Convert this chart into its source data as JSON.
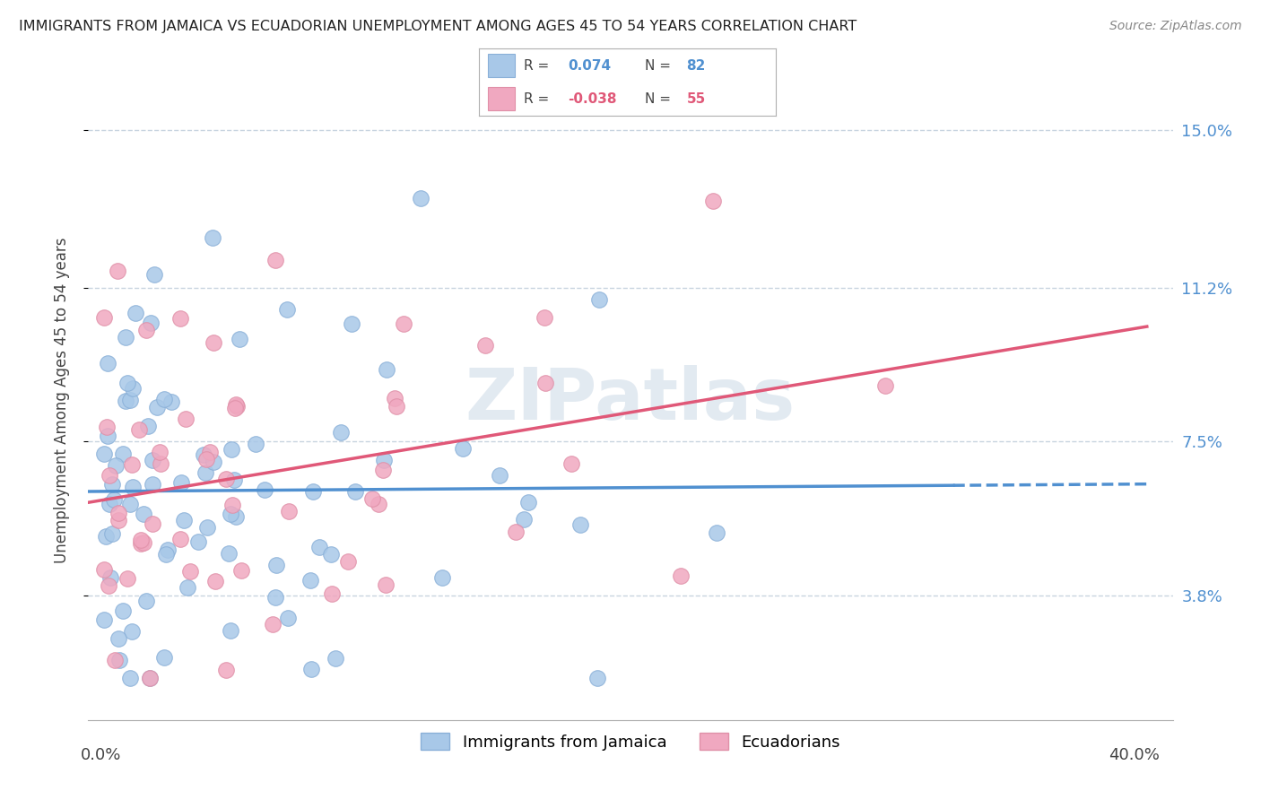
{
  "title": "IMMIGRANTS FROM JAMAICA VS ECUADORIAN UNEMPLOYMENT AMONG AGES 45 TO 54 YEARS CORRELATION CHART",
  "source": "Source: ZipAtlas.com",
  "ylabel": "Unemployment Among Ages 45 to 54 years",
  "ytick_values": [
    0.15,
    0.112,
    0.075,
    0.038
  ],
  "ytick_labels": [
    "15.0%",
    "11.2%",
    "7.5%",
    "3.8%"
  ],
  "ymin": 0.008,
  "ymax": 0.162,
  "xmin": -0.005,
  "xmax": 0.415,
  "series1_color": "#a8c8e8",
  "series2_color": "#f0a8c0",
  "series1_edge": "#8ab0d8",
  "series2_edge": "#e090a8",
  "trendline1_color": "#5090d0",
  "trendline2_color": "#e05878",
  "background": "#ffffff",
  "grid_color": "#c8d4e0",
  "watermark_color": "#d0dce8",
  "series1_name": "Immigrants from Jamaica",
  "series2_name": "Ecuadorians",
  "R1": 0.074,
  "N1": 82,
  "R2": -0.038,
  "N2": 55,
  "seed1": 42,
  "seed2": 99,
  "title_fontsize": 11.5,
  "source_fontsize": 10,
  "tick_fontsize": 13,
  "legend_fontsize": 12,
  "ylabel_fontsize": 12
}
